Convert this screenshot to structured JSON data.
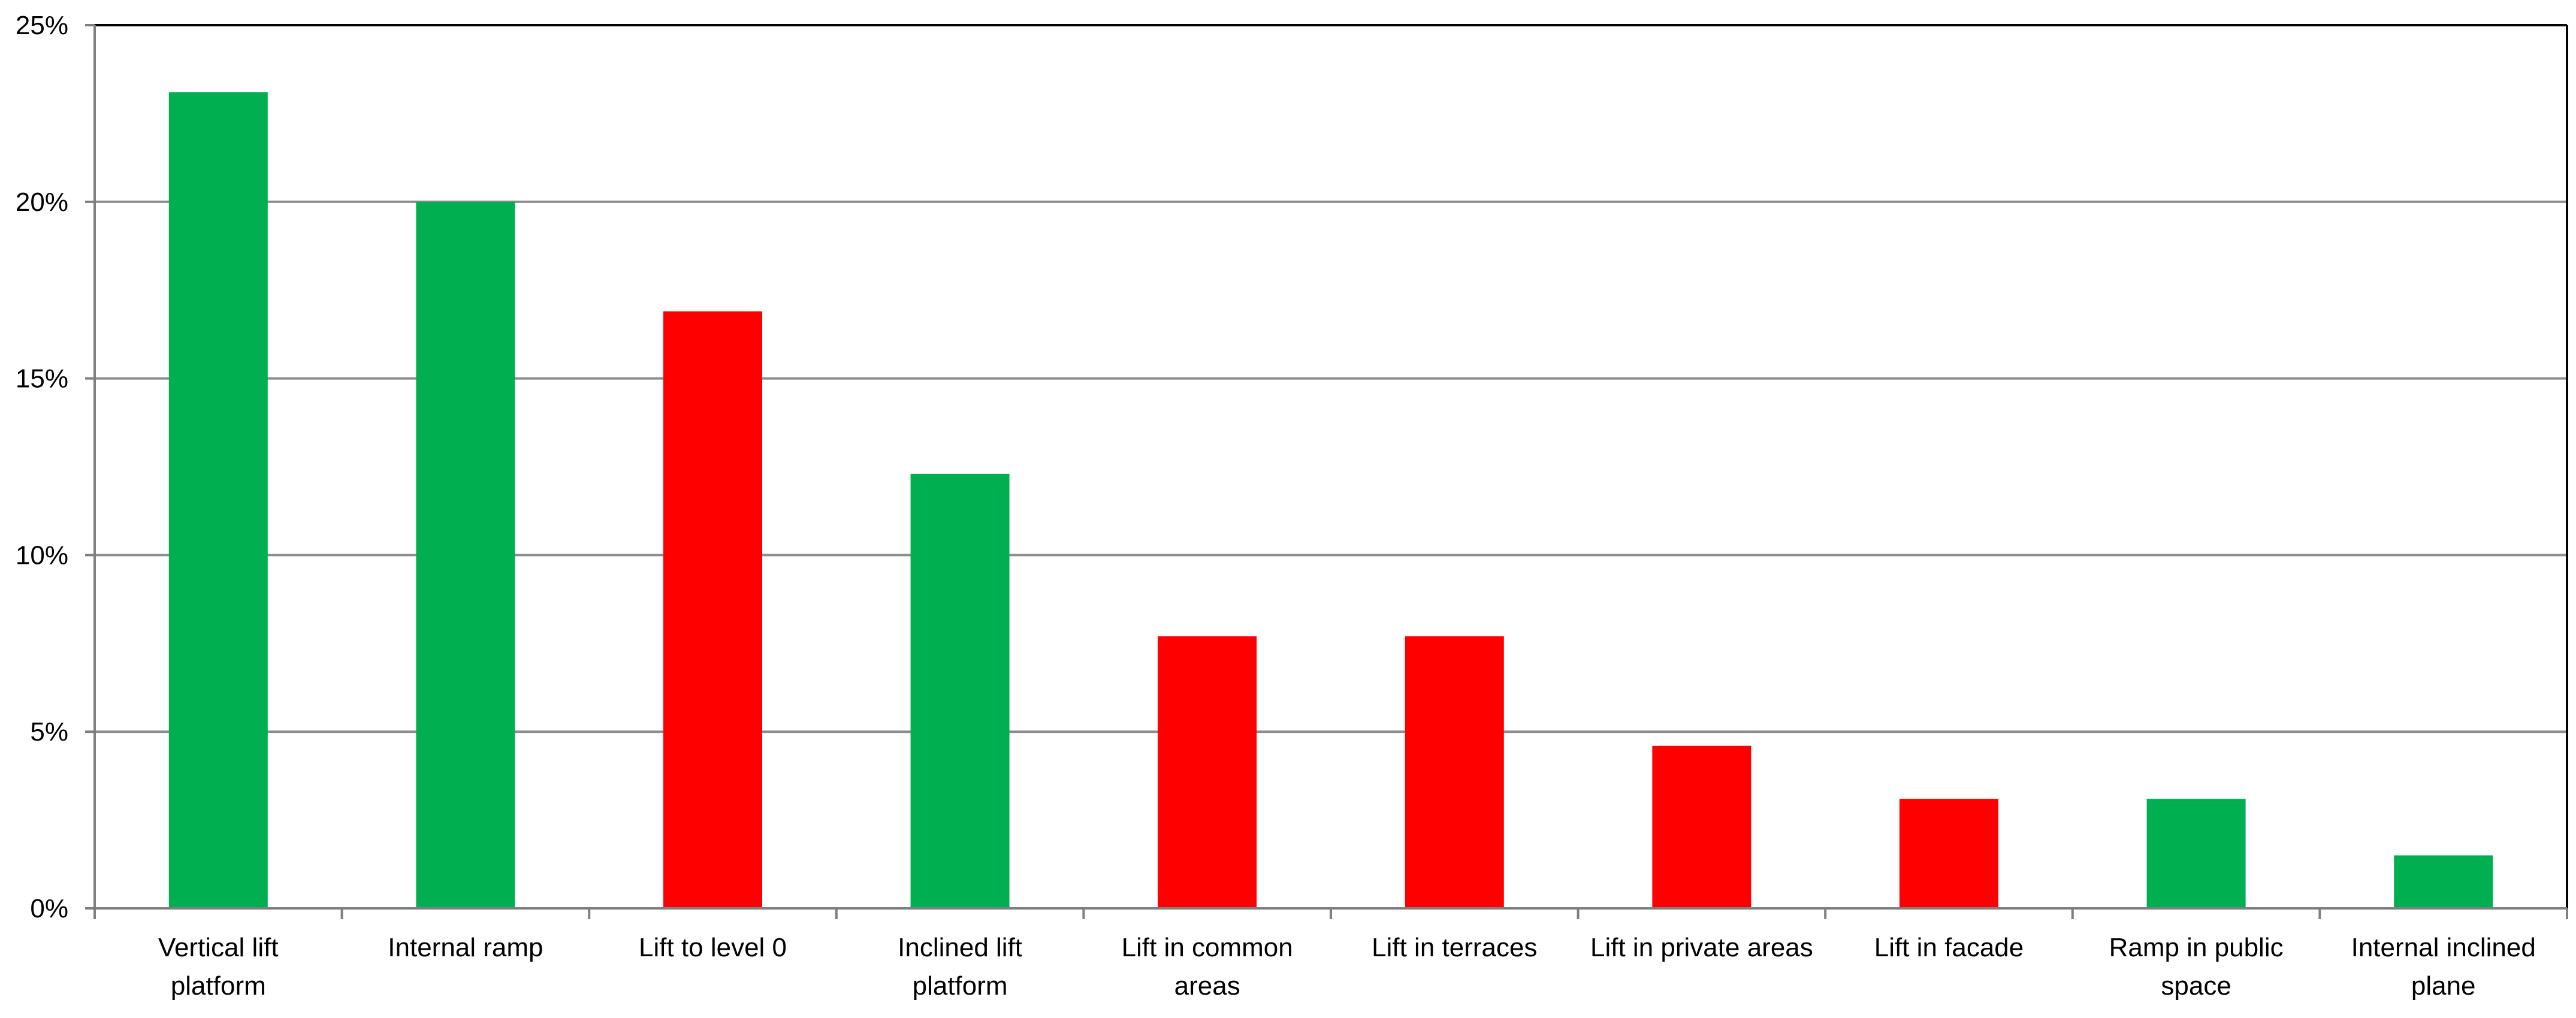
{
  "chart_data": {
    "type": "bar",
    "title": "",
    "xlabel": "",
    "ylabel": "",
    "ylim": [
      0,
      0.25
    ],
    "y_ticks": [
      {
        "value": 0.0,
        "label": "0%"
      },
      {
        "value": 0.05,
        "label": "5%"
      },
      {
        "value": 0.1,
        "label": "10%"
      },
      {
        "value": 0.15,
        "label": "15%"
      },
      {
        "value": 0.2,
        "label": "20%"
      },
      {
        "value": 0.25,
        "label": "25%"
      }
    ],
    "grid": "horizontal",
    "legend": "none",
    "categories": [
      [
        "Vertical lift",
        "platform"
      ],
      [
        "Internal ramp"
      ],
      [
        "Lift to level 0"
      ],
      [
        "Inclined lift",
        "platform"
      ],
      [
        "Lift in common",
        "areas"
      ],
      [
        "Lift in terraces"
      ],
      [
        "Lift in private areas"
      ],
      [
        "Lift in facade"
      ],
      [
        "Ramp in public",
        "space"
      ],
      [
        "Internal inclined",
        "plane"
      ]
    ],
    "values": [
      0.231,
      0.2,
      0.169,
      0.123,
      0.077,
      0.077,
      0.046,
      0.031,
      0.031,
      0.015
    ],
    "bar_colors": [
      "#00B050",
      "#00B050",
      "#FF0000",
      "#00B050",
      "#FF0000",
      "#FF0000",
      "#FF0000",
      "#FF0000",
      "#00B050",
      "#00B050"
    ],
    "colors": {
      "green": "#00B050",
      "red": "#FF0000",
      "gridline": "#8C8C8C",
      "axis": "#7F7F7F",
      "frame": "#000000"
    }
  }
}
